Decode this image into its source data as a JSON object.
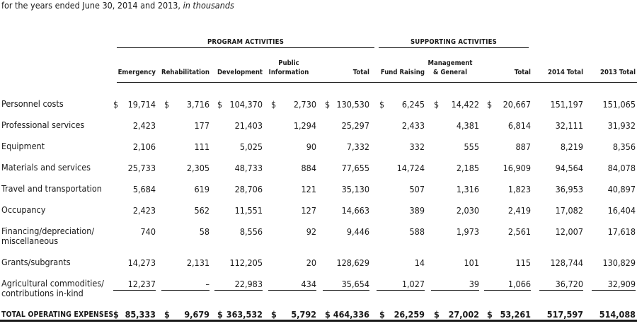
{
  "subtitle": {
    "text": "for the years ended June 30, 2014 and 2013, ",
    "italic": "in thousands"
  },
  "groups": {
    "program": "PROGRAM ACTIVITIES",
    "supporting": "SUPPORTING ACTIVITIES"
  },
  "columns": [
    {
      "l1": "",
      "l2": "Emergency"
    },
    {
      "l1": "",
      "l2": "Rehabilitation"
    },
    {
      "l1": "",
      "l2": "Development"
    },
    {
      "l1": "Public",
      "l2": "Information"
    },
    {
      "l1": "",
      "l2": "Total"
    },
    {
      "l1": "",
      "l2": "Fund Raising"
    },
    {
      "l1": "Management",
      "l2": "& General"
    },
    {
      "l1": "",
      "l2": "Total"
    },
    {
      "l1": "",
      "l2": "2014 Total"
    },
    {
      "l1": "",
      "l2": "2013 Total"
    }
  ],
  "currency_symbol": "$",
  "rows": [
    {
      "label1": "Personnel costs",
      "label2": "",
      "values": [
        "19,714",
        "3,716",
        "104,370",
        "2,730",
        "130,530",
        "6,245",
        "14,422",
        "20,667",
        "151,197",
        "151,065"
      ]
    },
    {
      "label1": "Professional services",
      "label2": "",
      "values": [
        "2,423",
        "177",
        "21,403",
        "1,294",
        "25,297",
        "2,433",
        "4,381",
        "6,814",
        "32,111",
        "31,932"
      ]
    },
    {
      "label1": "Equipment",
      "label2": "",
      "values": [
        "2,106",
        "111",
        "5,025",
        "90",
        "7,332",
        "332",
        "555",
        "887",
        "8,219",
        "8,356"
      ]
    },
    {
      "label1": "Materials and services",
      "label2": "",
      "values": [
        "25,733",
        "2,305",
        "48,733",
        "884",
        "77,655",
        "14,724",
        "2,185",
        "16,909",
        "94,564",
        "84,078"
      ]
    },
    {
      "label1": "Travel and transportation",
      "label2": "",
      "values": [
        "5,684",
        "619",
        "28,706",
        "121",
        "35,130",
        "507",
        "1,316",
        "1,823",
        "36,953",
        "40,897"
      ]
    },
    {
      "label1": "Occupancy",
      "label2": "",
      "values": [
        "2,423",
        "562",
        "11,551",
        "127",
        "14,663",
        "389",
        "2,030",
        "2,419",
        "17,082",
        "16,404"
      ]
    },
    {
      "label1": "Financing/depreciation/",
      "label2": "miscellaneous",
      "values": [
        "740",
        "58",
        "8,556",
        "92",
        "9,446",
        "588",
        "1,973",
        "2,561",
        "12,007",
        "17,618"
      ]
    },
    {
      "label1": "Grants/subgrants",
      "label2": "",
      "values": [
        "14,273",
        "2,131",
        "112,205",
        "20",
        "128,629",
        "14",
        "101",
        "115",
        "128,744",
        "130,829"
      ]
    },
    {
      "label1": "Agricultural commodities/",
      "label2": "contributions in-kind",
      "values": [
        "12,237",
        "–",
        "22,983",
        "434",
        "35,654",
        "1,027",
        "39",
        "1,066",
        "36,720",
        "32,909"
      ]
    }
  ],
  "total": {
    "label": "TOTAL OPERATING EXPENSES",
    "values": [
      "85,333",
      "9,679",
      "363,532",
      "5,792",
      "464,336",
      "26,259",
      "27,002",
      "53,261",
      "517,597",
      "514,088"
    ]
  }
}
